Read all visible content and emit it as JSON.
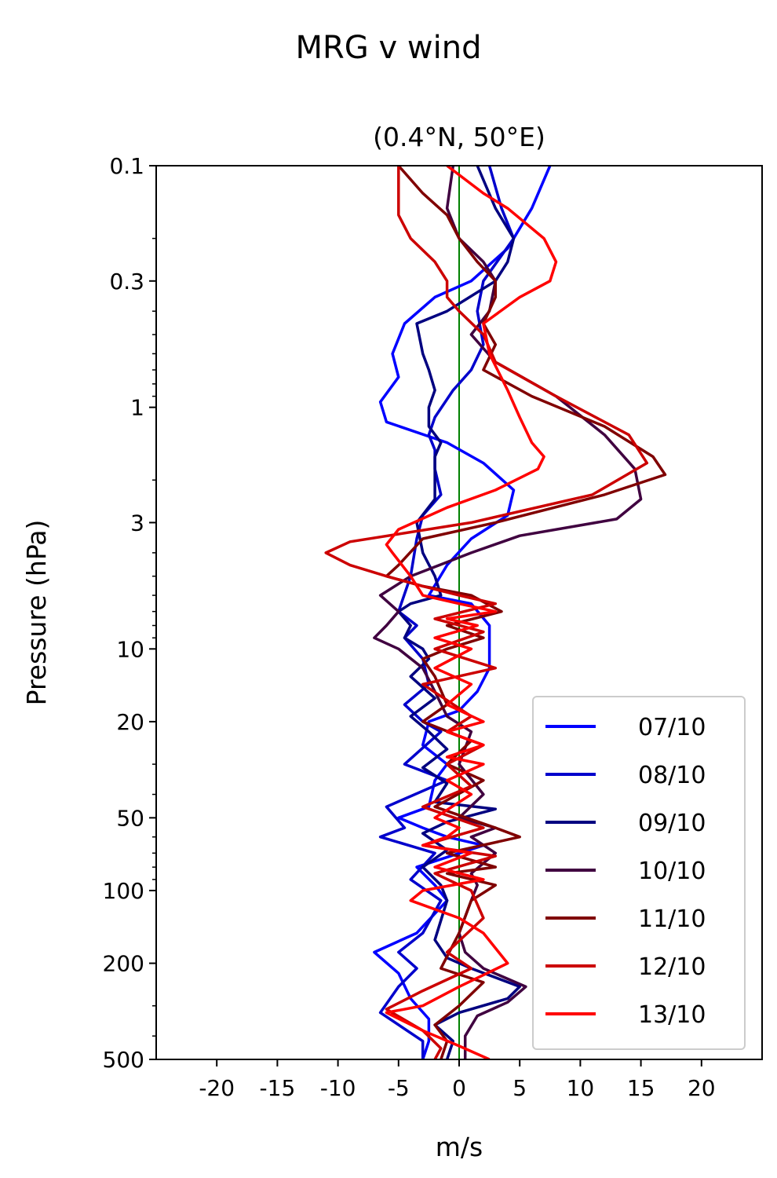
{
  "chart_data": {
    "type": "line",
    "title": "MRG v wind",
    "subtitle": "(0.4°N, 50°E)",
    "xlabel": "m/s",
    "ylabel": "Pressure (hPa)",
    "xlim": [
      -25,
      25
    ],
    "ylim": [
      500,
      0.1
    ],
    "y_scale": "log",
    "x_ticks": [
      -20,
      -15,
      -10,
      -5,
      0,
      5,
      10,
      15,
      20
    ],
    "x_tick_labels": [
      "-20",
      "-15",
      "-10",
      "-5",
      "0",
      "5",
      "10",
      "15",
      "20"
    ],
    "y_ticks": [
      0.1,
      0.3,
      1,
      3,
      10,
      20,
      50,
      100,
      200,
      500
    ],
    "y_tick_labels": [
      "0.1",
      "0.3",
      "1",
      "3",
      "10",
      "20",
      "50",
      "100",
      "200",
      "500"
    ],
    "zero_line_color": "#008000",
    "grid": false,
    "legend_position": "lower-right",
    "series": [
      {
        "name": "07/10",
        "color": "#0000ff",
        "points": [
          [
            7.5,
            0.1
          ],
          [
            6,
            0.15
          ],
          [
            4,
            0.22
          ],
          [
            1,
            0.3
          ],
          [
            -2,
            0.35
          ],
          [
            -4.5,
            0.45
          ],
          [
            -5.5,
            0.6
          ],
          [
            -5,
            0.75
          ],
          [
            -6.5,
            0.95
          ],
          [
            -6,
            1.15
          ],
          [
            -1,
            1.4
          ],
          [
            2,
            1.7
          ],
          [
            4.5,
            2.2
          ],
          [
            4,
            2.8
          ],
          [
            1,
            3.5
          ],
          [
            -1,
            4.5
          ],
          [
            -2.5,
            6
          ],
          [
            1,
            6.5
          ],
          [
            2.5,
            8
          ],
          [
            2.5,
            10
          ],
          [
            2.5,
            12
          ],
          [
            1.5,
            15
          ],
          [
            0,
            18
          ],
          [
            -2.5,
            20
          ],
          [
            -3,
            25
          ],
          [
            -1,
            30
          ],
          [
            -2,
            35
          ],
          [
            -2.5,
            45
          ],
          [
            -5,
            50
          ],
          [
            -3,
            55
          ],
          [
            -1,
            60
          ],
          [
            2,
            65
          ],
          [
            -3.5,
            80
          ],
          [
            -2,
            95
          ],
          [
            -1,
            110
          ],
          [
            -3.5,
            150
          ],
          [
            -7,
            180
          ],
          [
            -5,
            220
          ],
          [
            -4,
            280
          ],
          [
            -2.5,
            340
          ],
          [
            -2.5,
            420
          ],
          [
            -3,
            500
          ]
        ]
      },
      {
        "name": "08/10",
        "color": "#0000cc",
        "points": [
          [
            2.5,
            0.1
          ],
          [
            3.5,
            0.15
          ],
          [
            4.5,
            0.2
          ],
          [
            2,
            0.3
          ],
          [
            1.5,
            0.4
          ],
          [
            2,
            0.55
          ],
          [
            1,
            0.7
          ],
          [
            -0.5,
            0.85
          ],
          [
            -2,
            1.1
          ],
          [
            -2.5,
            1.3
          ],
          [
            -2,
            1.5
          ],
          [
            -2,
            1.8
          ],
          [
            -1.5,
            2.3
          ],
          [
            -3,
            2.8
          ],
          [
            -3.5,
            3.5
          ],
          [
            -4,
            5
          ],
          [
            -5,
            7
          ],
          [
            -3.5,
            8
          ],
          [
            -4.5,
            9
          ],
          [
            -3,
            11
          ],
          [
            -2.5,
            14
          ],
          [
            -4.5,
            17
          ],
          [
            -3,
            20
          ],
          [
            -1.5,
            22
          ],
          [
            -4.5,
            30
          ],
          [
            -1,
            35
          ],
          [
            -6,
            45
          ],
          [
            -4.5,
            55
          ],
          [
            -6.5,
            60
          ],
          [
            -2,
            70
          ],
          [
            -4,
            90
          ],
          [
            -1.5,
            110
          ],
          [
            -3,
            150
          ],
          [
            -5,
            180
          ],
          [
            -3.5,
            210
          ],
          [
            -5,
            250
          ],
          [
            -6.5,
            320
          ],
          [
            -3,
            420
          ],
          [
            -3,
            500
          ]
        ]
      },
      {
        "name": "09/10",
        "color": "#000080",
        "points": [
          [
            1.5,
            0.1
          ],
          [
            3,
            0.15
          ],
          [
            4.5,
            0.2
          ],
          [
            4,
            0.25
          ],
          [
            3,
            0.3
          ],
          [
            -1,
            0.4
          ],
          [
            -3.5,
            0.45
          ],
          [
            -3,
            0.6
          ],
          [
            -2.5,
            0.7
          ],
          [
            -2,
            0.85
          ],
          [
            -2.5,
            1
          ],
          [
            -2.5,
            1.2
          ],
          [
            -1.5,
            1.4
          ],
          [
            -2,
            1.6
          ],
          [
            -2,
            2
          ],
          [
            -2,
            2.4
          ],
          [
            -3.5,
            3
          ],
          [
            -3,
            4
          ],
          [
            -2,
            5
          ],
          [
            -1.5,
            6
          ],
          [
            -4,
            6.5
          ],
          [
            -5,
            7
          ],
          [
            -4,
            8
          ],
          [
            -4.5,
            9
          ],
          [
            -3,
            10
          ],
          [
            -2.5,
            11
          ],
          [
            -4,
            13
          ],
          [
            -2,
            16
          ],
          [
            -4,
            19
          ],
          [
            -2.5,
            22
          ],
          [
            -1,
            26
          ],
          [
            -3,
            31
          ],
          [
            -1,
            36
          ],
          [
            -2,
            43
          ],
          [
            3,
            46
          ],
          [
            -1,
            52
          ],
          [
            -3,
            58
          ],
          [
            -1,
            68
          ],
          [
            -3,
            80
          ],
          [
            -1.5,
            95
          ],
          [
            -1,
            110
          ],
          [
            -2,
            160
          ],
          [
            -1,
            190
          ],
          [
            1,
            210
          ],
          [
            5,
            250
          ],
          [
            4,
            280
          ],
          [
            0,
            320
          ],
          [
            -2,
            360
          ],
          [
            -0.5,
            420
          ],
          [
            -1,
            500
          ]
        ]
      },
      {
        "name": "10/10",
        "color": "#400040",
        "points": [
          [
            -0.5,
            0.1
          ],
          [
            -1,
            0.15
          ],
          [
            0,
            0.2
          ],
          [
            2,
            0.25
          ],
          [
            3,
            0.3
          ],
          [
            2.5,
            0.4
          ],
          [
            1,
            0.5
          ],
          [
            3,
            0.65
          ],
          [
            8,
            0.9
          ],
          [
            12,
            1.3
          ],
          [
            14.5,
            1.8
          ],
          [
            15,
            2.4
          ],
          [
            13,
            2.9
          ],
          [
            5,
            3.4
          ],
          [
            1,
            4
          ],
          [
            -4,
            5
          ],
          [
            -6.5,
            6
          ],
          [
            -5,
            7
          ],
          [
            -6,
            8
          ],
          [
            -7,
            9
          ],
          [
            -5,
            10
          ],
          [
            -3,
            12
          ],
          [
            -2,
            15
          ],
          [
            -1,
            19
          ],
          [
            1,
            22
          ],
          [
            0,
            30
          ],
          [
            2,
            40
          ],
          [
            0,
            50
          ],
          [
            3,
            55
          ],
          [
            1,
            60
          ],
          [
            3,
            70
          ],
          [
            1,
            85
          ],
          [
            1.5,
            95
          ],
          [
            1,
            110
          ],
          [
            0,
            150
          ],
          [
            0.5,
            180
          ],
          [
            2,
            210
          ],
          [
            5.5,
            250
          ],
          [
            4,
            290
          ],
          [
            1.5,
            330
          ],
          [
            0.5,
            400
          ],
          [
            0.5,
            500
          ]
        ]
      },
      {
        "name": "11/10",
        "color": "#800000",
        "points": [
          [
            -5,
            0.1
          ],
          [
            -3,
            0.13
          ],
          [
            -1,
            0.16
          ],
          [
            0,
            0.2
          ],
          [
            1.5,
            0.25
          ],
          [
            3,
            0.3
          ],
          [
            3,
            0.35
          ],
          [
            2,
            0.45
          ],
          [
            3,
            0.55
          ],
          [
            2,
            0.7
          ],
          [
            6,
            0.9
          ],
          [
            12,
            1.2
          ],
          [
            16,
            1.6
          ],
          [
            17,
            1.9
          ],
          [
            12,
            2.3
          ],
          [
            3,
            3
          ],
          [
            -3,
            3.5
          ],
          [
            -5,
            4.5
          ],
          [
            -6,
            5
          ],
          [
            -3,
            5.5
          ],
          [
            1,
            6
          ],
          [
            3.5,
            7
          ],
          [
            -1,
            8
          ],
          [
            2,
            9
          ],
          [
            -1,
            10
          ],
          [
            -3,
            11
          ],
          [
            -2,
            13
          ],
          [
            -1,
            17
          ],
          [
            -3,
            20
          ],
          [
            1,
            24
          ],
          [
            -1,
            30
          ],
          [
            2,
            35
          ],
          [
            -2,
            45
          ],
          [
            3,
            55
          ],
          [
            5,
            60
          ],
          [
            -1,
            70
          ],
          [
            3,
            80
          ],
          [
            -1,
            85
          ],
          [
            3,
            95
          ],
          [
            1,
            110
          ],
          [
            0,
            150
          ],
          [
            -1.5,
            210
          ],
          [
            2,
            240
          ],
          [
            0,
            300
          ],
          [
            -2,
            360
          ],
          [
            -1,
            420
          ],
          [
            -1.5,
            500
          ]
        ]
      },
      {
        "name": "12/10",
        "color": "#cc0000",
        "points": [
          [
            -5,
            0.1
          ],
          [
            -5,
            0.13
          ],
          [
            -5,
            0.16
          ],
          [
            -4,
            0.2
          ],
          [
            -2,
            0.25
          ],
          [
            -1,
            0.3
          ],
          [
            -1,
            0.35
          ],
          [
            0,
            0.4
          ],
          [
            2,
            0.5
          ],
          [
            3,
            0.65
          ],
          [
            8,
            0.9
          ],
          [
            14,
            1.3
          ],
          [
            15.5,
            1.7
          ],
          [
            11,
            2.3
          ],
          [
            1,
            3
          ],
          [
            -9,
            3.6
          ],
          [
            -11,
            4
          ],
          [
            -9,
            4.5
          ],
          [
            -6,
            5
          ],
          [
            -3,
            5.5
          ],
          [
            0,
            6
          ],
          [
            3,
            6.5
          ],
          [
            -2,
            7.5
          ],
          [
            2,
            8.5
          ],
          [
            -2,
            10
          ],
          [
            3,
            12
          ],
          [
            -3,
            14
          ],
          [
            1,
            19
          ],
          [
            -1,
            22
          ],
          [
            2,
            25
          ],
          [
            -1,
            30
          ],
          [
            1,
            37
          ],
          [
            -3,
            45
          ],
          [
            2,
            55
          ],
          [
            -3,
            65
          ],
          [
            3,
            72
          ],
          [
            -2,
            85
          ],
          [
            1,
            100
          ],
          [
            2,
            130
          ],
          [
            -1,
            180
          ],
          [
            1,
            210
          ],
          [
            -3,
            260
          ],
          [
            -6,
            310
          ],
          [
            -3,
            380
          ],
          [
            -1.5,
            450
          ],
          [
            -2,
            500
          ]
        ]
      },
      {
        "name": "13/10",
        "color": "#ff0000",
        "points": [
          [
            -1,
            0.1
          ],
          [
            2,
            0.13
          ],
          [
            4,
            0.15
          ],
          [
            7,
            0.2
          ],
          [
            8,
            0.25
          ],
          [
            7.5,
            0.3
          ],
          [
            5,
            0.35
          ],
          [
            2,
            0.45
          ],
          [
            2.5,
            0.6
          ],
          [
            4,
            0.85
          ],
          [
            5,
            1.1
          ],
          [
            6,
            1.4
          ],
          [
            7,
            1.6
          ],
          [
            6.5,
            1.8
          ],
          [
            3,
            2.2
          ],
          [
            -1,
            2.6
          ],
          [
            -5,
            3.2
          ],
          [
            -6,
            3.7
          ],
          [
            -5.5,
            4
          ],
          [
            -4,
            5
          ],
          [
            -3,
            6
          ],
          [
            0,
            6.5
          ],
          [
            3,
            7
          ],
          [
            -1,
            7.5
          ],
          [
            1.5,
            8
          ],
          [
            -2,
            9
          ],
          [
            1,
            10
          ],
          [
            -2,
            12
          ],
          [
            1,
            14
          ],
          [
            -1,
            17
          ],
          [
            2,
            20
          ],
          [
            -1,
            22
          ],
          [
            2,
            25
          ],
          [
            -1,
            28
          ],
          [
            2,
            30
          ],
          [
            -1,
            35
          ],
          [
            1,
            40
          ],
          [
            -2,
            50
          ],
          [
            0,
            55
          ],
          [
            -1,
            60
          ],
          [
            -3,
            65
          ],
          [
            1,
            70
          ],
          [
            -2,
            80
          ],
          [
            2,
            90
          ],
          [
            -3,
            100
          ],
          [
            -4,
            110
          ],
          [
            0,
            130
          ],
          [
            2,
            150
          ],
          [
            4,
            200
          ],
          [
            0,
            250
          ],
          [
            -3,
            300
          ],
          [
            -6,
            320
          ],
          [
            -3,
            380
          ],
          [
            0,
            440
          ],
          [
            2.5,
            500
          ]
        ]
      }
    ]
  }
}
